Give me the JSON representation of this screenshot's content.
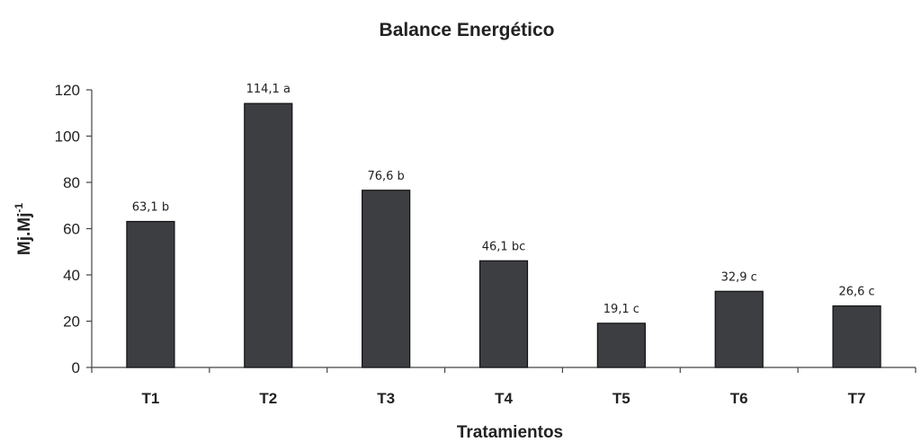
{
  "chart_data": {
    "type": "bar",
    "title": "Balance Energético",
    "xlabel": "Tratamientos",
    "ylabel": "Mj.Mj",
    "ylabel_superscript": "-1",
    "categories": [
      "T1",
      "T2",
      "T3",
      "T4",
      "T5",
      "T6",
      "T7"
    ],
    "values": [
      63.1,
      114.1,
      76.6,
      46.1,
      19.1,
      32.9,
      26.6
    ],
    "data_labels": [
      "63,1 b",
      "114,1 a",
      "76,6 b",
      "46,1 bc",
      "19,1 c",
      "32,9 c",
      "26,6 c"
    ],
    "ylim": [
      0,
      120
    ],
    "yticks": [
      0,
      20,
      40,
      60,
      80,
      100,
      120
    ],
    "ytick_labels": [
      "0",
      "20",
      "40",
      "60",
      "80",
      "100",
      "120"
    ],
    "grid": false,
    "legend": "none",
    "bar_color": "#3d3e42"
  }
}
